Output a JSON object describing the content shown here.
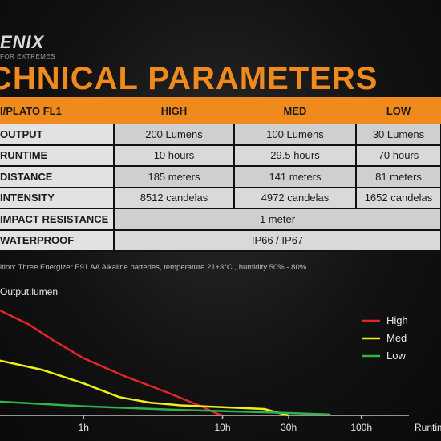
{
  "brand": {
    "logo": "ENIX",
    "tagline": "FOR EXTREMES"
  },
  "title": "CHNICAL PARAMETERS",
  "table": {
    "headers": [
      "I/PLATO FL1",
      "HIGH",
      "MED",
      "LOW"
    ],
    "rows": [
      {
        "label": "OUTPUT",
        "values": [
          "200 Lumens",
          "100 Lumens",
          "30 Lumens"
        ]
      },
      {
        "label": "RUNTIME",
        "values": [
          "10 hours",
          "29.5 hours",
          "70 hours"
        ]
      },
      {
        "label": "DISTANCE",
        "values": [
          "185 meters",
          "141 meters",
          "81 meters"
        ]
      },
      {
        "label": "INTENSITY",
        "values": [
          "8512 candelas",
          "4972 candelas",
          "1652 candelas"
        ]
      },
      {
        "label": "IMPACT RESISTANCE",
        "merged": "1 meter"
      },
      {
        "label": "WATERPROOF",
        "merged": "IP66 / IP67"
      }
    ]
  },
  "note": "ition: Three Energizer E91 AA Alkaline batteries, temperature 21±3°C , humidity 50% - 80%.",
  "colors": {
    "accent": "#f08a1c",
    "high": "#e0262a",
    "med": "#f2ee1a",
    "low": "#2fb34a",
    "axis": "#bfbfbf"
  },
  "chart_data": {
    "type": "line",
    "ylabel": "Output:lumen",
    "xlabel": "Runtim",
    "x_scale": "log",
    "x_ticks": [
      "1h",
      "10h",
      "30h",
      "100h"
    ],
    "x_tick_values": [
      1,
      10,
      30,
      100
    ],
    "xlim": [
      0.25,
      220
    ],
    "ylim": [
      0,
      260
    ],
    "legend_position": "top-right",
    "series": [
      {
        "name": "High",
        "x": [
          0.25,
          0.4,
          0.6,
          1,
          2,
          4,
          7,
          9,
          10
        ],
        "y": [
          230,
          200,
          165,
          125,
          85,
          50,
          20,
          5,
          0
        ]
      },
      {
        "name": "Med",
        "x": [
          0.25,
          0.5,
          1,
          1.8,
          3,
          5,
          10,
          20,
          30
        ],
        "y": [
          120,
          100,
          70,
          40,
          28,
          22,
          18,
          14,
          0
        ]
      },
      {
        "name": "Low",
        "x": [
          0.25,
          1,
          5,
          20,
          40,
          60
        ],
        "y": [
          30,
          20,
          12,
          7,
          4,
          2
        ]
      }
    ]
  }
}
